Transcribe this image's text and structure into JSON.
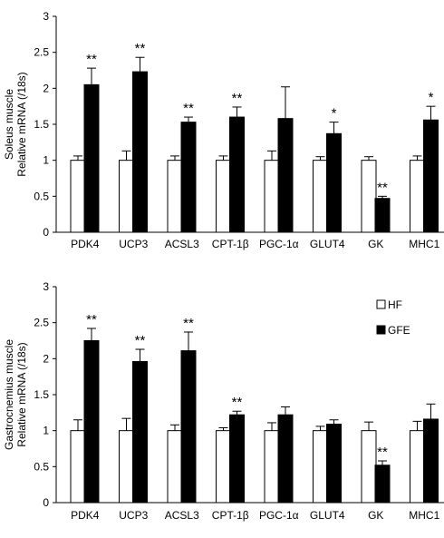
{
  "chart_data": [
    {
      "type": "bar",
      "ylabel_lines": [
        "Soleus muscle",
        "Relative mRNA (/18s)"
      ],
      "ylim": [
        0,
        3
      ],
      "yticks": [
        "0",
        "0.5",
        "1",
        "1.5",
        "2",
        "2.5",
        "3"
      ],
      "categories": [
        "PDK4",
        "UCP3",
        "ACSL3",
        "CPT-1β",
        "PGC-1α",
        "GLUT4",
        "GK",
        "MHC1"
      ],
      "series": [
        {
          "name": "HF",
          "color": "#ffffff",
          "values": [
            1.0,
            1.0,
            1.0,
            1.0,
            1.0,
            1.0,
            1.0,
            1.0
          ],
          "errors": [
            0.06,
            0.13,
            0.06,
            0.06,
            0.13,
            0.05,
            0.05,
            0.06
          ]
        },
        {
          "name": "GFE",
          "color": "#000000",
          "values": [
            2.05,
            2.23,
            1.53,
            1.6,
            1.58,
            1.37,
            0.47,
            1.56
          ],
          "errors": [
            0.23,
            0.2,
            0.07,
            0.14,
            0.44,
            0.16,
            0.03,
            0.19
          ]
        }
      ],
      "annotations": [
        "**",
        "**",
        "**",
        "**",
        "",
        "*",
        "**",
        "*"
      ],
      "legend": false
    },
    {
      "type": "bar",
      "ylabel_lines": [
        "Gastrocnemius muscle",
        "Relative mRNA (/18s)"
      ],
      "ylim": [
        0,
        3
      ],
      "yticks": [
        "0",
        "0.5",
        "1",
        "1.5",
        "2",
        "2.5",
        "3"
      ],
      "categories": [
        "PDK4",
        "UCP3",
        "ACSL3",
        "CPT-1β",
        "PGC-1α",
        "GLUT4",
        "GK",
        "MHC1"
      ],
      "series": [
        {
          "name": "HF",
          "color": "#ffffff",
          "values": [
            1.0,
            1.0,
            1.0,
            1.0,
            1.0,
            1.0,
            1.0,
            1.0
          ],
          "errors": [
            0.15,
            0.17,
            0.08,
            0.04,
            0.11,
            0.06,
            0.12,
            0.13
          ]
        },
        {
          "name": "GFE",
          "color": "#000000",
          "values": [
            2.25,
            1.96,
            2.11,
            1.22,
            1.22,
            1.09,
            0.52,
            1.16
          ],
          "errors": [
            0.17,
            0.17,
            0.26,
            0.05,
            0.11,
            0.06,
            0.06,
            0.21
          ]
        }
      ],
      "annotations": [
        "**",
        "**",
        "**",
        "**",
        "",
        "",
        "**",
        ""
      ],
      "legend": true,
      "legend_placement": "top-right"
    }
  ]
}
